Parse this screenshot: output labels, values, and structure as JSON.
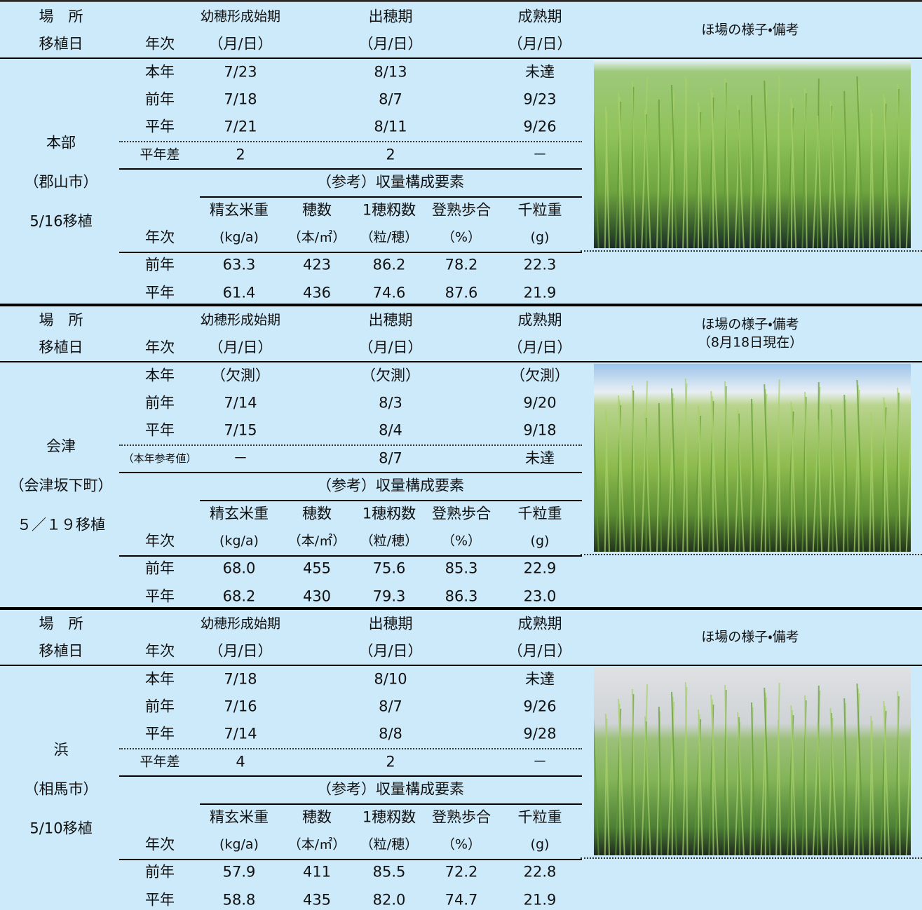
{
  "sections": [
    {
      "header": {
        "place": "場　所",
        "planting": "移植日",
        "year": "年次",
        "panicle": "幼穂形成始期",
        "heading": "出穂期",
        "maturity": "成熟期",
        "unit": "（月/日）",
        "remarks": [
          "ほ場の様子・備考"
        ]
      },
      "site": [
        "本部",
        "（郡山市）",
        "5/16移植"
      ],
      "dates": [
        [
          "本年",
          "7/23",
          "8/13",
          "未達"
        ],
        [
          "前年",
          "7/18",
          "8/7",
          "9/23"
        ],
        [
          "平年",
          "7/21",
          "8/11",
          "9/26"
        ]
      ],
      "diff": [
        "平年差",
        "2",
        "2",
        "－"
      ],
      "yield_title": "（参考）収量構成要素",
      "yield_header": [
        "精玄米重",
        "穂数",
        "1穂籾数",
        "登熟歩合",
        "千粒重"
      ],
      "yield_year": "年次",
      "yield_units": [
        "(kg/a)",
        "（本/㎡）",
        "（粒/穂）",
        "（%）",
        "(g)"
      ],
      "yield_rows": [
        [
          "前年",
          "63.3",
          "423",
          "86.2",
          "78.2",
          "22.3"
        ],
        [
          "平年",
          "61.4",
          "436",
          "74.6",
          "87.6",
          "21.9"
        ]
      ]
    },
    {
      "header": {
        "place": "場　所",
        "planting": "移植日",
        "year": "年次",
        "panicle": "幼穂形成始期",
        "heading": "出穂期",
        "maturity": "成熟期",
        "unit": "（月/日）",
        "remarks": [
          "ほ場の様子・備考",
          "（8月18日現在）"
        ]
      },
      "site": [
        "会津",
        "（会津坂下町）",
        "５／１９移植"
      ],
      "dates": [
        [
          "本年",
          "（欠測）",
          "（欠測）",
          "（欠測）"
        ],
        [
          "前年",
          "7/14",
          "8/3",
          "9/20"
        ],
        [
          "平年",
          "7/15",
          "8/4",
          "9/18"
        ]
      ],
      "diff": [
        "（本年参考値）",
        "－",
        "8/7",
        "未達"
      ],
      "yield_title": "（参考）収量構成要素",
      "yield_header": [
        "精玄米重",
        "穂数",
        "1穂籾数",
        "登熟歩合",
        "千粒重"
      ],
      "yield_year": "年次",
      "yield_units": [
        "(kg/a)",
        "（本/㎡）",
        "（粒/穂）",
        "（%）",
        "(g)"
      ],
      "yield_rows": [
        [
          "前年",
          "68.0",
          "455",
          "75.6",
          "85.3",
          "22.9"
        ],
        [
          "平年",
          "68.2",
          "430",
          "79.3",
          "86.3",
          "23.0"
        ]
      ]
    },
    {
      "header": {
        "place": "場　所",
        "planting": "移植日",
        "year": "年次",
        "panicle": "幼穂形成始期",
        "heading": "出穂期",
        "maturity": "成熟期",
        "unit": "（月/日）",
        "remarks": [
          "ほ場の様子・備考"
        ]
      },
      "site": [
        "浜",
        "（相馬市）",
        "5/10移植"
      ],
      "dates": [
        [
          "本年",
          "7/18",
          "8/10",
          "未達"
        ],
        [
          "前年",
          "7/16",
          "8/7",
          "9/26"
        ],
        [
          "平年",
          "7/14",
          "8/8",
          "9/28"
        ]
      ],
      "diff": [
        "平年差",
        "4",
        "2",
        "－"
      ],
      "yield_title": "（参考）収量構成要素",
      "yield_header": [
        "精玄米重",
        "穂数",
        "1穂籾数",
        "登熟歩合",
        "千粒重"
      ],
      "yield_year": "年次",
      "yield_units": [
        "(kg/a)",
        "（本/㎡）",
        "（粒/穂）",
        "（%）",
        "(g)"
      ],
      "yield_rows": [
        [
          "前年",
          "57.9",
          "411",
          "85.5",
          "72.2",
          "22.8"
        ],
        [
          "平年",
          "58.8",
          "435",
          "82.0",
          "74.7",
          "21.9"
        ]
      ]
    }
  ]
}
